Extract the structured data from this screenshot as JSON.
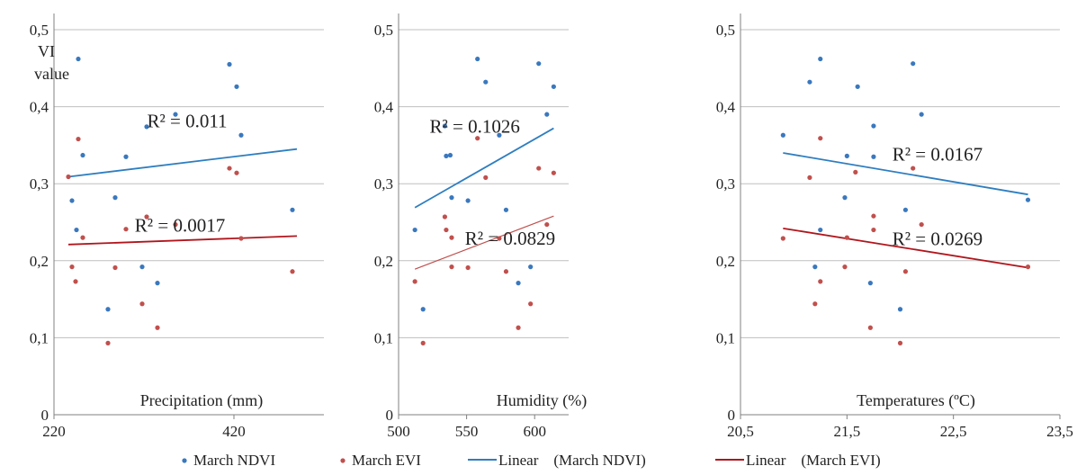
{
  "legend": {
    "items": [
      {
        "label": "March NDVI",
        "kind": "dot",
        "color": "#3a78be"
      },
      {
        "label": "March EVI",
        "kind": "dot",
        "color": "#c0504d"
      },
      {
        "label": "Linear    (March NDVI)",
        "kind": "line",
        "color": "#2e7ec0"
      },
      {
        "label": "Linear    (March EVI)",
        "kind": "line",
        "color": "#b0161c"
      }
    ]
  },
  "chart_data": [
    {
      "type": "scatter",
      "xlabel": "Precipitation (mm)",
      "ylabel": "VI value",
      "ylabel_lines": [
        "VI",
        "value"
      ],
      "xlim": [
        220,
        520
      ],
      "ylim": [
        0,
        0.5
      ],
      "x_ticks": [
        "220",
        "420"
      ],
      "x_tick_values": [
        220,
        420
      ],
      "y_ticks": [
        "0",
        "0,1",
        "0,2",
        "0,3",
        "0,4",
        "0,5"
      ],
      "grid": true,
      "series": [
        {
          "name": "March NDVI",
          "color": "#3a78be",
          "points": [
            [
              247,
              0.462
            ],
            [
              252,
              0.337
            ],
            [
              240,
              0.278
            ],
            [
              245,
              0.24
            ],
            [
              280,
              0.137
            ],
            [
              288,
              0.282
            ],
            [
              300,
              0.335
            ],
            [
              318,
              0.192
            ],
            [
              323,
              0.374
            ],
            [
              335,
              0.171
            ],
            [
              355,
              0.39
            ],
            [
              415,
              0.455
            ],
            [
              423,
              0.426
            ],
            [
              428,
              0.363
            ],
            [
              485,
              0.266
            ]
          ]
        },
        {
          "name": "March EVI",
          "color": "#c0504d",
          "points": [
            [
              236,
              0.309
            ],
            [
              247,
              0.358
            ],
            [
              252,
              0.23
            ],
            [
              240,
              0.192
            ],
            [
              244,
              0.173
            ],
            [
              280,
              0.093
            ],
            [
              288,
              0.191
            ],
            [
              300,
              0.241
            ],
            [
              318,
              0.144
            ],
            [
              323,
              0.257
            ],
            [
              335,
              0.113
            ],
            [
              355,
              0.247
            ],
            [
              415,
              0.32
            ],
            [
              423,
              0.314
            ],
            [
              428,
              0.229
            ],
            [
              485,
              0.186
            ]
          ]
        }
      ],
      "trendlines": [
        {
          "name": "Linear    (March NDVI)",
          "color": "#2e7ec0",
          "x": [
            236,
            490
          ],
          "y": [
            0.309,
            0.345
          ]
        },
        {
          "name": "Linear    (March EVI)",
          "color": "#b0161c",
          "x": [
            236,
            490
          ],
          "y": [
            0.221,
            0.232
          ]
        }
      ],
      "annotations": [
        {
          "text": "R² = 0.011",
          "x": 368,
          "y": 0.373
        },
        {
          "text": "R² = 0.0017",
          "x": 360,
          "y": 0.238
        }
      ]
    },
    {
      "type": "scatter",
      "xlabel": "Humidity (%)",
      "xlim": [
        500,
        625
      ],
      "ylim": [
        0,
        0.5
      ],
      "x_ticks": [
        "500",
        "550",
        "600"
      ],
      "x_tick_values": [
        500,
        550,
        600
      ],
      "y_ticks": [
        "0",
        "0,1",
        "0,2",
        "0,3",
        "0,4",
        "0,5"
      ],
      "grid": true,
      "series": [
        {
          "name": "March NDVI",
          "color": "#3a78be",
          "points": [
            [
              512,
              0.24
            ],
            [
              518,
              0.137
            ],
            [
              534,
              0.375
            ],
            [
              535,
              0.336
            ],
            [
              538,
              0.337
            ],
            [
              539,
              0.282
            ],
            [
              551,
              0.278
            ],
            [
              558,
              0.462
            ],
            [
              564,
              0.432
            ],
            [
              574,
              0.363
            ],
            [
              579,
              0.266
            ],
            [
              588,
              0.171
            ],
            [
              597,
              0.192
            ],
            [
              603,
              0.456
            ],
            [
              609,
              0.39
            ],
            [
              614,
              0.426
            ]
          ]
        },
        {
          "name": "March EVI",
          "color": "#c0504d",
          "points": [
            [
              512,
              0.173
            ],
            [
              518,
              0.093
            ],
            [
              534,
              0.257
            ],
            [
              535,
              0.24
            ],
            [
              539,
              0.23
            ],
            [
              539,
              0.192
            ],
            [
              551,
              0.191
            ],
            [
              558,
              0.359
            ],
            [
              564,
              0.308
            ],
            [
              574,
              0.229
            ],
            [
              579,
              0.186
            ],
            [
              588,
              0.113
            ],
            [
              597,
              0.144
            ],
            [
              603,
              0.32
            ],
            [
              609,
              0.247
            ],
            [
              614,
              0.314
            ]
          ]
        }
      ],
      "trendlines": [
        {
          "name": "Linear    (March NDVI)",
          "color": "#2e7ec0",
          "x": [
            512,
            614
          ],
          "y": [
            0.269,
            0.372
          ]
        },
        {
          "name": "Linear    (March EVI)",
          "color": "#c0504d",
          "x": [
            512,
            614
          ],
          "y": [
            0.189,
            0.258
          ]
        }
      ],
      "annotations": [
        {
          "text": "R² = 0.1026",
          "x": 556,
          "y": 0.366
        },
        {
          "text": "R² = 0.0829",
          "x": 582,
          "y": 0.221
        }
      ]
    },
    {
      "type": "scatter",
      "xlabel": "Temperatures (ºC)",
      "xlim": [
        20.5,
        23.5
      ],
      "ylim": [
        0,
        0.5
      ],
      "x_ticks": [
        "20,5",
        "21,5",
        "22,5",
        "23,5"
      ],
      "x_tick_values": [
        20.5,
        21.5,
        22.5,
        23.5
      ],
      "y_ticks": [
        "0",
        "0,1",
        "0,2",
        "0,3",
        "0,4",
        "0,5"
      ],
      "grid": true,
      "series": [
        {
          "name": "March NDVI",
          "color": "#3a78be",
          "points": [
            [
              20.9,
              0.363
            ],
            [
              21.15,
              0.432
            ],
            [
              21.25,
              0.462
            ],
            [
              21.5,
              0.336
            ],
            [
              21.48,
              0.282
            ],
            [
              21.25,
              0.24
            ],
            [
              21.2,
              0.192
            ],
            [
              21.6,
              0.426
            ],
            [
              21.75,
              0.375
            ],
            [
              21.75,
              0.335
            ],
            [
              21.72,
              0.171
            ],
            [
              22.0,
              0.137
            ],
            [
              22.05,
              0.266
            ],
            [
              22.12,
              0.456
            ],
            [
              22.2,
              0.39
            ],
            [
              23.2,
              0.279
            ]
          ]
        },
        {
          "name": "March EVI",
          "color": "#c0504d",
          "points": [
            [
              20.9,
              0.229
            ],
            [
              21.15,
              0.308
            ],
            [
              21.25,
              0.359
            ],
            [
              21.25,
              0.173
            ],
            [
              21.2,
              0.144
            ],
            [
              21.5,
              0.23
            ],
            [
              21.48,
              0.192
            ],
            [
              21.58,
              0.315
            ],
            [
              21.75,
              0.258
            ],
            [
              21.75,
              0.24
            ],
            [
              21.72,
              0.113
            ],
            [
              22.0,
              0.093
            ],
            [
              22.05,
              0.186
            ],
            [
              22.12,
              0.32
            ],
            [
              22.2,
              0.247
            ],
            [
              23.2,
              0.192
            ]
          ]
        }
      ],
      "trendlines": [
        {
          "name": "Linear    (March NDVI)",
          "color": "#2e7ec0",
          "x": [
            20.9,
            23.2
          ],
          "y": [
            0.34,
            0.286
          ]
        },
        {
          "name": "Linear    (March EVI)",
          "color": "#b0161c",
          "x": [
            20.9,
            23.2
          ],
          "y": [
            0.242,
            0.191
          ]
        }
      ],
      "annotations": [
        {
          "text": "R² = 0.0167",
          "x": 22.35,
          "y": 0.33
        },
        {
          "text": "R² = 0.0269",
          "x": 22.35,
          "y": 0.22
        }
      ]
    }
  ]
}
